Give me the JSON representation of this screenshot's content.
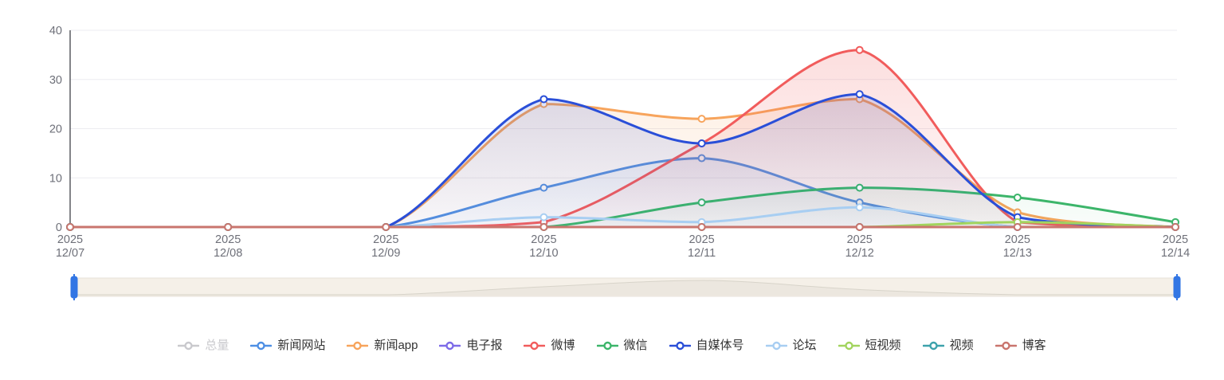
{
  "chart_data": {
    "type": "line",
    "smooth": true,
    "grid": true,
    "legend_position": "bottom",
    "x_year": "2025",
    "categories": [
      "12/07",
      "12/08",
      "12/09",
      "12/10",
      "12/11",
      "12/12",
      "12/13",
      "12/14"
    ],
    "ylim": [
      0,
      40
    ],
    "y_ticks": [
      "0",
      "10",
      "20",
      "30",
      "40"
    ],
    "series": [
      {
        "name": "总量",
        "color": "#CCCCCC",
        "disabled": true,
        "values": null
      },
      {
        "name": "新闻网站",
        "color": "#4E8FE4",
        "disabled": false,
        "values": [
          0,
          0,
          0,
          8,
          14,
          5,
          0,
          0
        ]
      },
      {
        "name": "新闻app",
        "color": "#F7A45C",
        "disabled": false,
        "values": [
          0,
          0,
          0,
          25,
          22,
          26,
          3,
          0
        ]
      },
      {
        "name": "电子报",
        "color": "#7D6BE8",
        "disabled": false,
        "values": [
          0,
          0,
          0,
          0,
          0,
          0,
          0,
          0
        ]
      },
      {
        "name": "微博",
        "color": "#F15C5C",
        "disabled": false,
        "values": [
          0,
          0,
          0,
          1,
          17,
          36,
          1,
          0
        ]
      },
      {
        "name": "微信",
        "color": "#3CB56A",
        "disabled": false,
        "values": [
          0,
          0,
          0,
          0,
          5,
          8,
          6,
          1
        ]
      },
      {
        "name": "自媒体号",
        "color": "#2A4FD8",
        "disabled": false,
        "values": [
          0,
          0,
          0,
          26,
          17,
          27,
          2,
          0
        ]
      },
      {
        "name": "论坛",
        "color": "#A8CEF2",
        "disabled": false,
        "values": [
          0,
          0,
          0,
          2,
          1,
          4,
          0,
          0
        ]
      },
      {
        "name": "短视频",
        "color": "#A2D45E",
        "disabled": false,
        "values": [
          0,
          0,
          0,
          0,
          0,
          0,
          1,
          0
        ]
      },
      {
        "name": "视频",
        "color": "#3DA2AC",
        "disabled": false,
        "values": [
          0,
          0,
          0,
          0,
          0,
          0,
          0,
          0
        ]
      },
      {
        "name": "博客",
        "color": "#C9756E",
        "disabled": false,
        "values": [
          0,
          0,
          0,
          0,
          0,
          0,
          0,
          0
        ]
      }
    ],
    "datazoom": {
      "shadow_series": "新闻网站"
    }
  },
  "colors": {
    "background": "#FFFFFF",
    "gridline": "#ECECF0",
    "axis_line": "#4E5056",
    "tick_text": "#6E7079",
    "legend_text": "#333333",
    "legend_disabled": "#C9C9CD",
    "slider_track": "#F5F0E8",
    "slider_border": "#E7E2D8",
    "slider_shadow": "#D8D4CA",
    "slider_handle": "#3276E4"
  }
}
